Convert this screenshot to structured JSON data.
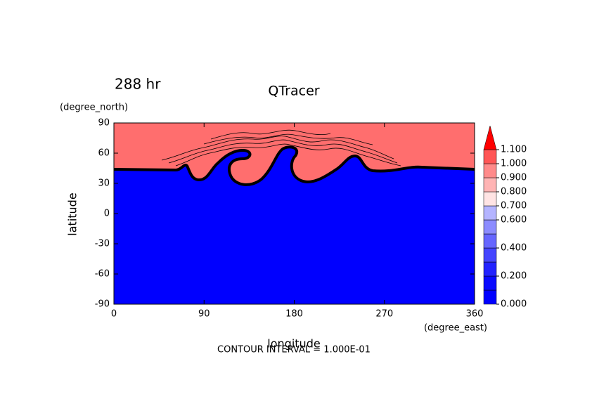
{
  "chart_data": {
    "type": "contour",
    "title": "QTracer",
    "time_label": "288 hr",
    "x_label": "longitude",
    "x_units": "(degree_east)",
    "y_label": "latitude",
    "y_units": "(degree_north)",
    "footer": "CONTOUR INTERVAL = 1.000E-01",
    "xlim": [
      0,
      360
    ],
    "xticks": [
      0,
      90,
      180,
      270,
      360
    ],
    "ylim": [
      -90,
      90
    ],
    "yticks": [
      -90,
      -60,
      -30,
      0,
      30,
      60,
      90
    ],
    "grid": false,
    "colorbar": {
      "bounds": [
        0,
        0.1,
        0.2,
        0.3,
        0.4,
        0.5,
        0.6,
        0.7,
        0.8,
        0.9,
        1.0,
        1.1
      ],
      "colors": [
        "#0000ff",
        "#0a0aff",
        "#2222ff",
        "#4444ff",
        "#6666ff",
        "#8c8cff",
        "#b4b4ff",
        "#ffe4e4",
        "#ffb4b4",
        "#ff8a8a",
        "#ff5555",
        "#ff0000"
      ],
      "ticks": [
        {
          "value": 0,
          "label": "0.000"
        },
        {
          "value": 0.2,
          "label": "0.200"
        },
        {
          "value": 0.4,
          "label": "0.400"
        },
        {
          "value": 0.6,
          "label": "0.600"
        },
        {
          "value": 0.7,
          "label": "0.700"
        },
        {
          "value": 0.8,
          "label": "0.800"
        },
        {
          "value": 0.9,
          "label": "0.900"
        },
        {
          "value": 1.0,
          "label": "1.000"
        },
        {
          "value": 1.1,
          "label": "1.100"
        }
      ]
    }
  }
}
